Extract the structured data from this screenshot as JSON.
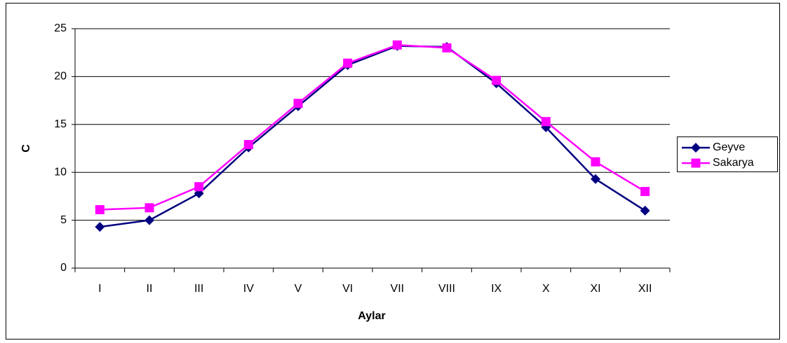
{
  "chart_data": {
    "type": "line",
    "x_label": "Aylar",
    "y_label": "C",
    "categories": [
      "I",
      "II",
      "III",
      "IV",
      "V",
      "VI",
      "VII",
      "VIII",
      "IX",
      "X",
      "XI",
      "XII"
    ],
    "series": [
      {
        "name": "Geyve",
        "color": "#000080",
        "marker": "diamond",
        "values": [
          4.3,
          5.0,
          7.8,
          12.6,
          16.9,
          21.2,
          23.2,
          23.1,
          19.3,
          14.7,
          9.3,
          6.0
        ]
      },
      {
        "name": "Sakarya",
        "color": "#ff00ff",
        "marker": "square",
        "values": [
          6.1,
          6.3,
          8.5,
          12.9,
          17.2,
          21.4,
          23.3,
          23.0,
          19.6,
          15.3,
          11.1,
          8.0
        ]
      }
    ],
    "ylim": [
      0,
      25
    ],
    "yticks": [
      0,
      5,
      10,
      15,
      20,
      25
    ],
    "grid": true,
    "legend": "right"
  }
}
